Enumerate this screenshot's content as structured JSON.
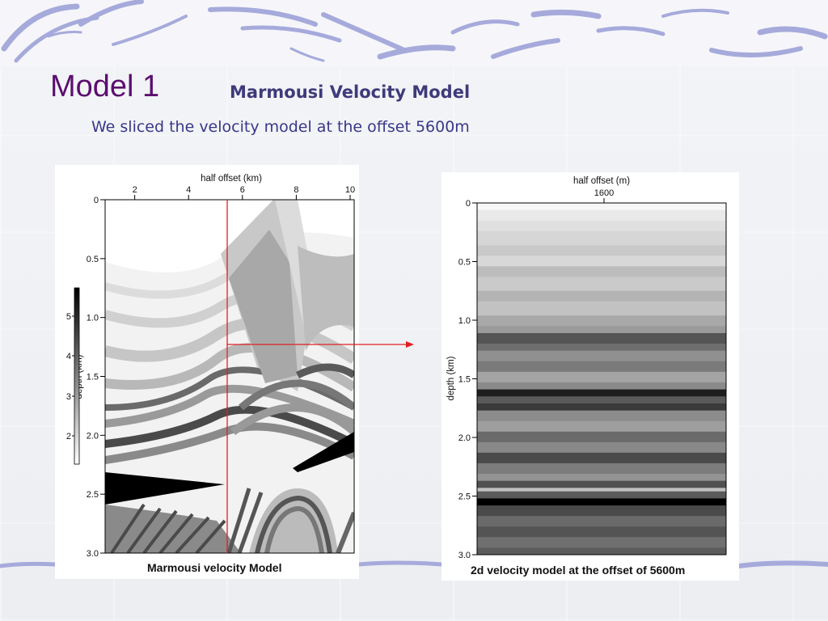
{
  "slide": {
    "title": "Model 1",
    "heading": "Marmousi Velocity Model",
    "subtitle": "We sliced the velocity model at the offset 5600m"
  },
  "left_figure": {
    "x_axis_title": "half offset (km)",
    "x_ticks": [
      "2",
      "4",
      "6",
      "8",
      "10"
    ],
    "y_axis_title": "depth (km)",
    "y_ticks": [
      "0",
      "0.5",
      "1.0",
      "1.5",
      "2.0",
      "2.5",
      "3.0"
    ],
    "colorbar_ticks": [
      "5",
      "4",
      "3",
      "2"
    ],
    "caption": "Marmousi velocity Model",
    "slice_offset_km": 5.6,
    "marker_depth_km": 1.2
  },
  "right_figure": {
    "x_axis_title": "half offset (m)",
    "x_tick": "1600",
    "y_axis_title": "depth (km)",
    "y_ticks": [
      "0",
      "0.5",
      "1.0",
      "1.5",
      "2.0",
      "2.5",
      "3.0"
    ],
    "caption": "2d velocity model at the offset of 5600m"
  },
  "colors": {
    "title": "#5b0f6e",
    "heading": "#3f3a7a",
    "subtitle": "#3a3888",
    "slice_line": "#e02020",
    "decor": "#9fa3d6"
  }
}
